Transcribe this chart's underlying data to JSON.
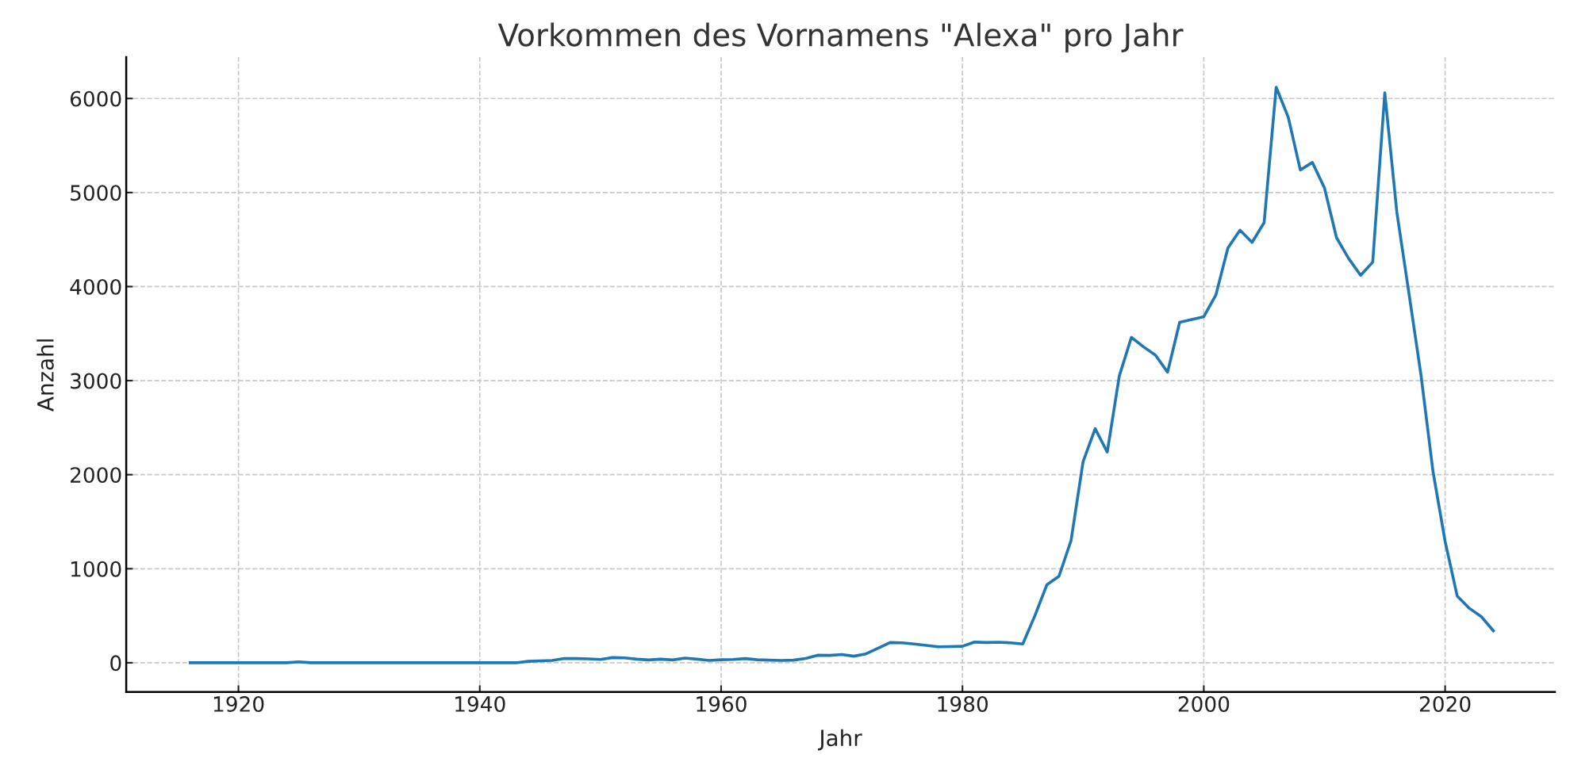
{
  "chart_data": {
    "type": "line",
    "title": "Vorkommen des Vornamens \"Alexa\" pro Jahr",
    "xlabel": "Jahr",
    "ylabel": "Anzahl",
    "x": [
      1916,
      1917,
      1918,
      1919,
      1920,
      1921,
      1922,
      1923,
      1924,
      1925,
      1926,
      1927,
      1928,
      1929,
      1930,
      1931,
      1932,
      1933,
      1934,
      1935,
      1936,
      1937,
      1938,
      1939,
      1940,
      1941,
      1942,
      1943,
      1944,
      1945,
      1946,
      1947,
      1948,
      1949,
      1950,
      1951,
      1952,
      1953,
      1954,
      1955,
      1956,
      1957,
      1958,
      1959,
      1960,
      1961,
      1962,
      1963,
      1964,
      1965,
      1966,
      1967,
      1968,
      1969,
      1970,
      1971,
      1972,
      1973,
      1974,
      1975,
      1976,
      1977,
      1978,
      1979,
      1980,
      1981,
      1982,
      1983,
      1984,
      1985,
      1986,
      1987,
      1988,
      1989,
      1990,
      1991,
      1992,
      1993,
      1994,
      1995,
      1996,
      1997,
      1998,
      1999,
      2000,
      2001,
      2002,
      2003,
      2004,
      2005,
      2006,
      2007,
      2008,
      2009,
      2010,
      2011,
      2012,
      2013,
      2014,
      2015,
      2016,
      2017,
      2018,
      2019,
      2020,
      2021,
      2022,
      2023,
      2024
    ],
    "series": [
      {
        "color": "#1f77b4",
        "values": [
          0,
          0,
          0,
          0,
          0,
          0,
          0,
          0,
          0,
          10,
          0,
          0,
          0,
          0,
          0,
          0,
          0,
          0,
          0,
          0,
          0,
          0,
          0,
          0,
          0,
          0,
          0,
          0,
          15,
          20,
          25,
          45,
          45,
          42,
          35,
          55,
          52,
          38,
          30,
          38,
          30,
          50,
          38,
          25,
          32,
          35,
          45,
          32,
          28,
          25,
          28,
          45,
          80,
          78,
          88,
          70,
          95,
          155,
          215,
          212,
          200,
          185,
          170,
          172,
          175,
          220,
          215,
          218,
          212,
          200,
          500,
          830,
          920,
          1300,
          2140,
          2490,
          2240,
          3050,
          3460,
          3360,
          3270,
          3090,
          3620,
          3650,
          3680,
          3910,
          4410,
          4600,
          4470,
          4680,
          6120,
          5800,
          5240,
          5320,
          5050,
          4520,
          4300,
          4120,
          4260,
          6060,
          4790,
          3930,
          3060,
          2030,
          1290,
          710,
          580,
          490,
          340
        ]
      }
    ],
    "xlim": [
      1910.7,
      2029.1
    ],
    "ylim": [
      -310,
      6440
    ],
    "xticks": [
      1920,
      1940,
      1960,
      1980,
      2000,
      2020
    ],
    "yticks": [
      0,
      1000,
      2000,
      3000,
      4000,
      5000,
      6000
    ],
    "grid": true,
    "marker": "none",
    "line_style": "solid"
  }
}
